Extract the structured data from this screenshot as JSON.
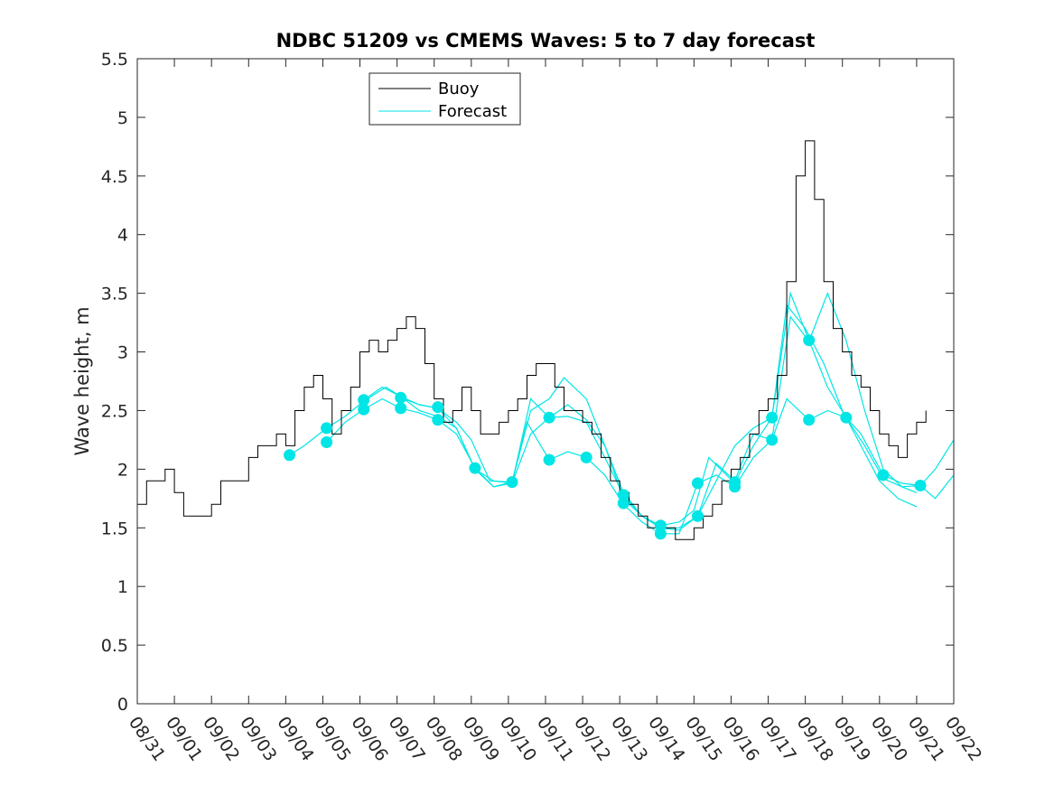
{
  "chart_data": {
    "type": "line",
    "title": "NDBC 51209 vs CMEMS Waves: 5 to 7 day forecast",
    "xlabel": "",
    "ylabel": "Wave height, m",
    "xlim": [
      0,
      22
    ],
    "ylim": [
      0,
      5.5
    ],
    "yticks": [
      0,
      0.5,
      1,
      1.5,
      2,
      2.5,
      3,
      3.5,
      4,
      4.5,
      5,
      5.5
    ],
    "ytick_labels": [
      "0",
      "0.5",
      "1",
      "1.5",
      "2",
      "2.5",
      "3",
      "3.5",
      "4",
      "4.5",
      "5",
      "5.5"
    ],
    "xtick_labels": [
      "08/31",
      "09/01",
      "09/02",
      "09/03",
      "09/04",
      "09/05",
      "09/06",
      "09/07",
      "09/08",
      "09/09",
      "09/10",
      "09/11",
      "09/12",
      "09/13",
      "09/14",
      "09/15",
      "09/16",
      "09/17",
      "09/18",
      "09/19",
      "09/20",
      "09/21",
      "09/22"
    ],
    "legend": {
      "placement": "top-left",
      "entries": [
        {
          "name": "Buoy",
          "color": "#000000"
        },
        {
          "name": "Forecast",
          "color": "#00e5e5"
        }
      ]
    },
    "colors": {
      "buoy": "#000000",
      "forecast": "#00e5e5",
      "axis": "#262626"
    },
    "buoy": {
      "name": "Buoy",
      "x": [
        0,
        0.25,
        0.5,
        0.75,
        1,
        1.25,
        1.5,
        1.75,
        2,
        2.25,
        2.5,
        2.75,
        3,
        3.25,
        3.5,
        3.75,
        4,
        4.25,
        4.5,
        4.75,
        5,
        5.25,
        5.5,
        5.75,
        6,
        6.25,
        6.5,
        6.75,
        7,
        7.25,
        7.5,
        7.75,
        8,
        8.25,
        8.5,
        8.75,
        9,
        9.25,
        9.5,
        9.75,
        10,
        10.25,
        10.5,
        10.75,
        11,
        11.25,
        11.5,
        11.75,
        12,
        12.25,
        12.5,
        12.75,
        13,
        13.25,
        13.5,
        13.75,
        14,
        14.25,
        14.5,
        14.75,
        15,
        15.25,
        15.5,
        15.75,
        16,
        16.25,
        16.5,
        16.75,
        17,
        17.25,
        17.5,
        17.75,
        18,
        18.25,
        18.5,
        18.75,
        19,
        19.25,
        19.5,
        19.75,
        20,
        20.25,
        20.5,
        20.75,
        21,
        21.25
      ],
      "values": [
        1.7,
        1.9,
        1.9,
        2.0,
        1.8,
        1.6,
        1.6,
        1.6,
        1.7,
        1.9,
        1.9,
        1.9,
        2.1,
        2.2,
        2.2,
        2.3,
        2.2,
        2.5,
        2.7,
        2.8,
        2.6,
        2.3,
        2.5,
        2.7,
        3.0,
        3.1,
        3.0,
        3.1,
        3.2,
        3.3,
        3.2,
        2.9,
        2.6,
        2.4,
        2.5,
        2.7,
        2.5,
        2.3,
        2.3,
        2.4,
        2.5,
        2.6,
        2.8,
        2.9,
        2.9,
        2.7,
        2.5,
        2.5,
        2.4,
        2.3,
        2.1,
        1.9,
        1.8,
        1.7,
        1.6,
        1.5,
        1.5,
        1.5,
        1.4,
        1.4,
        1.5,
        1.6,
        1.7,
        1.9,
        2.0,
        2.1,
        2.3,
        2.5,
        2.6,
        2.8,
        3.6,
        4.5,
        4.8,
        4.3,
        3.6,
        3.2,
        3.0,
        2.8,
        2.7,
        2.5,
        2.3,
        2.2,
        2.1,
        2.3,
        2.4,
        2.5
      ]
    },
    "forecast_series": [
      {
        "name": "Forecast",
        "x": [
          4.1,
          4.5,
          5.1,
          5.6,
          6.1,
          6.7,
          7.1,
          7.6,
          8.1,
          8.6,
          9.1,
          9.6,
          10.1,
          10.6,
          11.1,
          11.6,
          12.1,
          12.6,
          13.1,
          13.6,
          14.1,
          14.6,
          15.1,
          15.6,
          16.1,
          16.6,
          17.1,
          17.6,
          18.1,
          18.6,
          19.1,
          19.5,
          20.1,
          20.6,
          21.1,
          21.5,
          22.0
        ],
        "values": [
          2.12,
          2.2,
          2.35,
          2.45,
          2.58,
          2.7,
          2.62,
          2.55,
          2.52,
          2.35,
          2.0,
          1.9,
          1.88,
          2.3,
          2.44,
          2.55,
          2.42,
          2.2,
          1.75,
          1.6,
          1.5,
          1.48,
          1.6,
          1.9,
          2.2,
          2.35,
          2.44,
          3.5,
          3.1,
          2.7,
          2.44,
          2.3,
          1.95,
          1.88,
          1.86,
          2.0,
          2.25
        ]
      },
      {
        "name": "Forecast",
        "x": [
          5.1,
          5.6,
          6.1,
          6.6,
          7.1,
          7.6,
          8.1,
          8.6,
          9.1,
          9.6,
          10.1,
          10.5,
          11.1,
          11.6,
          12.1,
          12.6,
          13.1,
          13.6,
          14.1,
          14.6,
          15.1,
          15.6,
          16.1,
          16.6,
          17.1,
          17.5,
          18.1,
          18.6,
          19.1,
          19.6,
          20.1,
          20.6,
          21.1,
          21.5,
          22.0
        ],
        "values": [
          2.23,
          2.4,
          2.51,
          2.6,
          2.52,
          2.48,
          2.42,
          2.3,
          2.01,
          1.85,
          1.89,
          2.4,
          2.08,
          2.15,
          2.1,
          1.95,
          1.7,
          1.55,
          1.45,
          1.45,
          1.88,
          1.95,
          1.85,
          2.1,
          2.25,
          2.6,
          2.42,
          2.5,
          2.44,
          2.2,
          1.92,
          1.85,
          1.86,
          1.75,
          1.95
        ]
      },
      {
        "name": "Forecast",
        "x": [
          6.1,
          6.6,
          7.1,
          7.6,
          8.1,
          8.6,
          9.1,
          9.6,
          10.1,
          10.6,
          11.1,
          11.6,
          12.1,
          12.6,
          13.1,
          13.6,
          14.1,
          14.6,
          15.0,
          15.4,
          16.1,
          16.6,
          17.1,
          17.5,
          18.0,
          18.5,
          19.0,
          19.5,
          20.0,
          20.5,
          21.0
        ],
        "values": [
          2.59,
          2.7,
          2.62,
          2.5,
          2.45,
          2.35,
          2.0,
          1.85,
          1.88,
          2.6,
          2.44,
          2.45,
          2.4,
          2.1,
          1.78,
          1.6,
          1.52,
          1.55,
          1.65,
          2.1,
          1.88,
          2.2,
          2.44,
          3.4,
          3.2,
          2.9,
          2.5,
          2.2,
          1.9,
          1.75,
          1.68
        ]
      },
      {
        "name": "Forecast",
        "x": [
          7.1,
          7.6,
          8.1,
          8.6,
          9.0,
          9.5,
          10.1,
          10.6,
          11.1,
          11.5,
          12.1,
          12.6,
          13.1,
          13.6,
          14.1,
          14.6,
          15.1,
          15.6,
          16.1,
          16.6,
          17.1,
          17.6,
          18.1,
          18.6,
          19.1,
          19.6,
          20.1,
          20.6,
          21.0
        ],
        "values": [
          2.61,
          2.55,
          2.52,
          2.4,
          2.25,
          1.9,
          1.89,
          2.5,
          2.6,
          2.78,
          2.6,
          2.2,
          1.8,
          1.6,
          1.5,
          1.5,
          1.6,
          2.05,
          1.9,
          2.3,
          2.25,
          3.3,
          3.09,
          3.5,
          3.1,
          2.5,
          2.0,
          1.85,
          1.8
        ]
      }
    ],
    "markers": {
      "x": [
        4.1,
        5.1,
        5.1,
        6.1,
        6.1,
        7.1,
        7.1,
        8.1,
        8.1,
        9.1,
        10.1,
        11.1,
        11.1,
        12.1,
        13.1,
        13.1,
        14.1,
        14.1,
        15.1,
        15.1,
        16.1,
        16.1,
        17.1,
        17.1,
        18.1,
        18.1,
        19.1,
        20.1,
        21.1
      ],
      "values": [
        2.12,
        2.35,
        2.23,
        2.59,
        2.51,
        2.61,
        2.52,
        2.53,
        2.42,
        2.01,
        1.89,
        2.44,
        2.08,
        2.1,
        1.78,
        1.71,
        1.52,
        1.45,
        1.88,
        1.6,
        1.89,
        1.85,
        2.44,
        2.25,
        3.1,
        2.42,
        2.44,
        1.95,
        1.86
      ]
    }
  }
}
